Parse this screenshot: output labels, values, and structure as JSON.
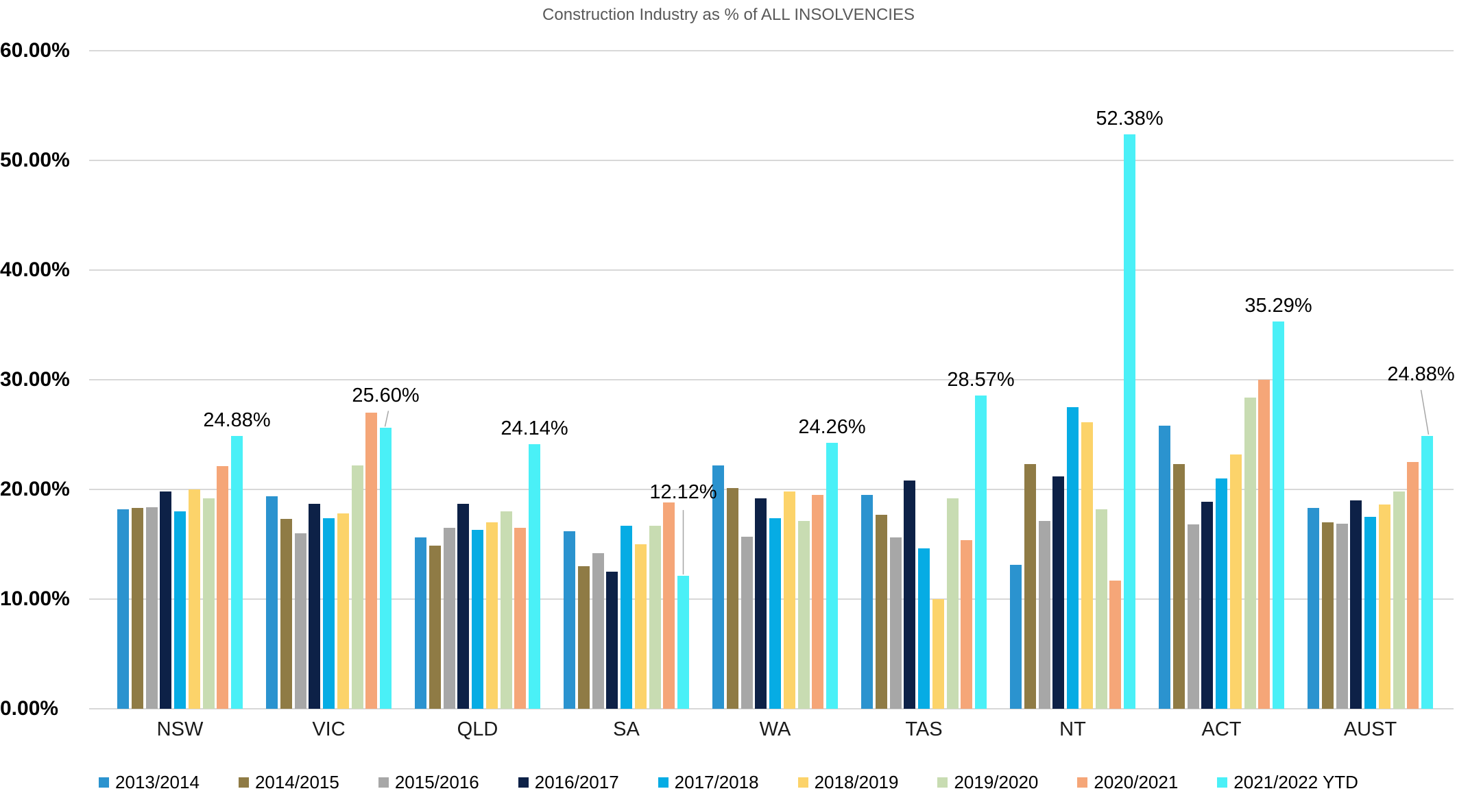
{
  "title": "Construction Industry as % of ALL INSOLVENCIES",
  "colors": {
    "grid": "#d8d8d8",
    "title_text": "#595959",
    "label_text": "#000000",
    "leader_line": "#a6a6a6"
  },
  "chart_data": {
    "type": "bar",
    "title": "Construction Industry as % of ALL INSOLVENCIES",
    "xlabel": "",
    "ylabel": "",
    "ylim": [
      0,
      60
    ],
    "grid": true,
    "legend_position": "bottom",
    "y_ticks": [
      "60.00%",
      "50.00%",
      "40.00%",
      "30.00%",
      "20.00%",
      "10.00%",
      "0.00%"
    ],
    "categories": [
      "NSW",
      "VIC",
      "QLD",
      "SA",
      "WA",
      "TAS",
      "NT",
      "ACT",
      "AUST"
    ],
    "series": [
      {
        "name": "2013/2014",
        "color": "#2b93cf",
        "values": [
          18.2,
          19.4,
          15.6,
          16.2,
          22.2,
          19.5,
          13.1,
          25.8,
          18.3
        ]
      },
      {
        "name": "2014/2015",
        "color": "#8f7b45",
        "values": [
          18.3,
          17.3,
          14.9,
          13.0,
          20.1,
          17.7,
          22.3,
          22.3,
          17.0
        ]
      },
      {
        "name": "2015/2016",
        "color": "#a7a7a7",
        "values": [
          18.4,
          16.0,
          16.5,
          14.2,
          15.7,
          15.6,
          17.1,
          16.8,
          16.9
        ]
      },
      {
        "name": "2016/2017",
        "color": "#0d2147",
        "values": [
          19.8,
          18.7,
          18.7,
          12.5,
          19.2,
          20.8,
          21.2,
          18.9,
          19.0
        ]
      },
      {
        "name": "2017/2018",
        "color": "#06ace4",
        "values": [
          18.0,
          17.4,
          16.3,
          16.7,
          17.4,
          14.6,
          27.5,
          21.0,
          17.5
        ]
      },
      {
        "name": "2018/2019",
        "color": "#fcd36a",
        "values": [
          20.0,
          17.8,
          17.0,
          15.0,
          19.8,
          10.0,
          26.1,
          23.2,
          18.6
        ]
      },
      {
        "name": "2019/2020",
        "color": "#c8dcb2",
        "values": [
          19.2,
          22.2,
          18.0,
          16.7,
          17.1,
          19.2,
          18.2,
          28.4,
          19.8
        ]
      },
      {
        "name": "2020/2021",
        "color": "#f5a678",
        "values": [
          22.1,
          27.0,
          16.5,
          18.8,
          19.5,
          15.4,
          11.7,
          30.0,
          22.5
        ]
      },
      {
        "name": "2021/2022 YTD",
        "color": "#4af0f7",
        "values": [
          24.88,
          25.6,
          24.14,
          12.12,
          24.26,
          28.57,
          52.38,
          35.29,
          24.88
        ]
      }
    ],
    "annotations": {
      "series": "2021/2022 YTD",
      "labels": [
        "24.88%",
        "25.60%",
        "24.14%",
        "12.12%",
        "24.26%",
        "28.57%",
        "52.38%",
        "35.29%",
        "24.88%"
      ]
    }
  }
}
